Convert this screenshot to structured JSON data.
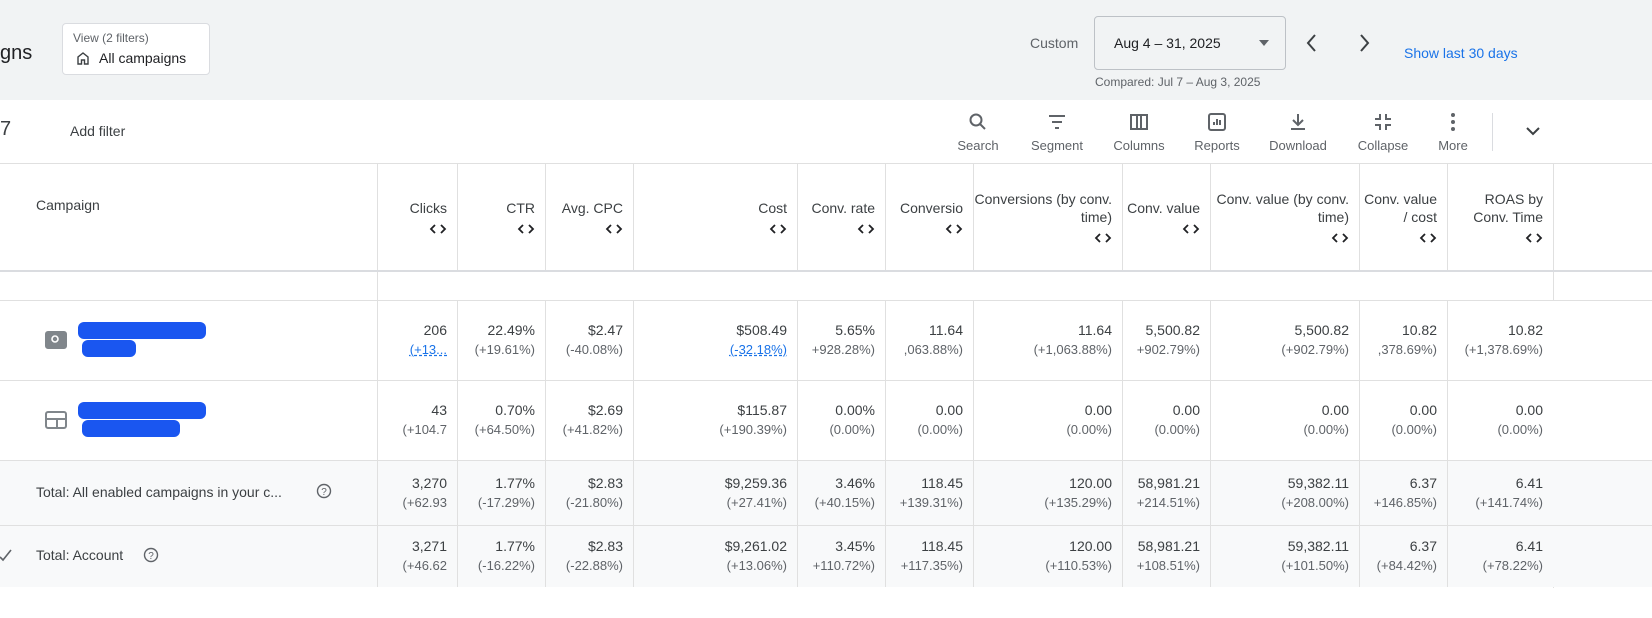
{
  "header": {
    "section_title": "gns",
    "view_label": "View (2 filters)",
    "view_value": "All campaigns",
    "date_mode": "Custom",
    "date_range": "Aug 4 – 31, 2025",
    "compared": "Compared: Jul 7 – Aug 3, 2025",
    "show_last": "Show last 30 days"
  },
  "toolbar": {
    "add_filter": "Add filter",
    "tools": [
      "Search",
      "Segment",
      "Columns",
      "Reports",
      "Download",
      "Collapse",
      "More"
    ]
  },
  "table": {
    "campaign_header": "Campaign",
    "columns": [
      "Clicks",
      "CTR",
      "Avg. CPC",
      "Cost",
      "Conv. rate",
      "Conversio",
      "Conversions (by conv. time)",
      "Conv. value",
      "Conv. value (by conv. time)",
      "Conv. value / cost",
      "ROAS by Conv. Time"
    ],
    "rows": [
      {
        "cells": [
          [
            "206",
            "(+13..."
          ],
          [
            "22.49%",
            "(+19.61%)"
          ],
          [
            "$2.47",
            "(-40.08%)"
          ],
          [
            "$508.49",
            "(-32.18%)"
          ],
          [
            "5.65%",
            "+928.28%)"
          ],
          [
            "11.64",
            ",063.88%)"
          ],
          [
            "11.64",
            "(+1,063.88%)"
          ],
          [
            "5,500.82",
            "+902.79%)"
          ],
          [
            "5,500.82",
            "(+902.79%)"
          ],
          [
            "10.82",
            ",378.69%)"
          ],
          [
            "10.82",
            "(+1,378.69%)"
          ]
        ]
      },
      {
        "cells": [
          [
            "43",
            "(+104.7"
          ],
          [
            "0.70%",
            "(+64.50%)"
          ],
          [
            "$2.69",
            "(+41.82%)"
          ],
          [
            "$115.87",
            "(+190.39%)"
          ],
          [
            "0.00%",
            "(0.00%)"
          ],
          [
            "0.00",
            "(0.00%)"
          ],
          [
            "0.00",
            "(0.00%)"
          ],
          [
            "0.00",
            "(0.00%)"
          ],
          [
            "0.00",
            "(0.00%)"
          ],
          [
            "0.00",
            "(0.00%)"
          ],
          [
            "0.00",
            "(0.00%)"
          ]
        ]
      },
      {
        "label": "Total: All enabled campaigns in your c...",
        "cells": [
          [
            "3,270",
            "(+62.93"
          ],
          [
            "1.77%",
            "(-17.29%)"
          ],
          [
            "$2.83",
            "(-21.80%)"
          ],
          [
            "$9,259.36",
            "(+27.41%)"
          ],
          [
            "3.46%",
            "(+40.15%)"
          ],
          [
            "118.45",
            "+139.31%)"
          ],
          [
            "120.00",
            "(+135.29%)"
          ],
          [
            "58,981.21",
            "+214.51%)"
          ],
          [
            "59,382.11",
            "(+208.00%)"
          ],
          [
            "6.37",
            "+146.85%)"
          ],
          [
            "6.41",
            "(+141.74%)"
          ]
        ]
      },
      {
        "label": "Total: Account",
        "cells": [
          [
            "3,271",
            "(+46.62"
          ],
          [
            "1.77%",
            "(-16.22%)"
          ],
          [
            "$2.83",
            "(-22.88%)"
          ],
          [
            "$9,261.02",
            "(+13.06%)"
          ],
          [
            "3.45%",
            "+110.72%)"
          ],
          [
            "118.45",
            "+117.35%)"
          ],
          [
            "120.00",
            "(+110.53%)"
          ],
          [
            "58,981.21",
            "+108.51%)"
          ],
          [
            "59,382.11",
            "(+101.50%)"
          ],
          [
            "6.37",
            "(+84.42%)"
          ],
          [
            "6.41",
            "(+78.22%)"
          ]
        ]
      }
    ]
  }
}
